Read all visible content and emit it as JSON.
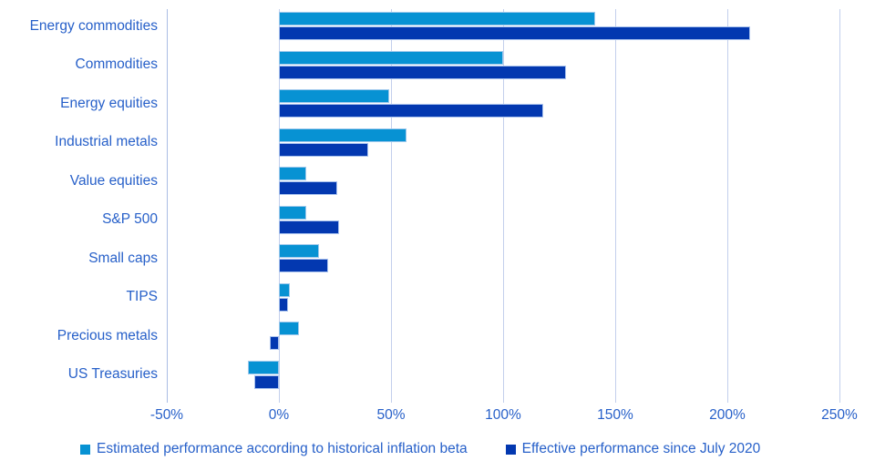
{
  "chart_data": {
    "type": "bar",
    "orientation": "horizontal",
    "title": "",
    "xlabel": "",
    "ylabel": "",
    "categories": [
      "Energy commodities",
      "Commodities",
      "Energy equities",
      "Industrial metals",
      "Value equities",
      "S&P 500",
      "Small caps",
      "TIPS",
      "Precious metals",
      "US Treasuries"
    ],
    "series": [
      {
        "name": "Estimated performance according to historical inflation beta",
        "color": "#0792d3",
        "values": [
          141,
          100,
          49,
          57,
          12,
          12,
          18,
          5,
          9,
          -14
        ]
      },
      {
        "name": "Effective performance since July 2020",
        "color": "#0338b0",
        "values": [
          210,
          128,
          118,
          40,
          26,
          27,
          22,
          4,
          -4,
          -11
        ]
      }
    ],
    "x_ticks": [
      "-50%",
      "0%",
      "50%",
      "100%",
      "150%",
      "200%",
      "250%"
    ],
    "x_min": -50,
    "x_max": 250,
    "value_unit": "%",
    "grid": "vertical-only",
    "legend_position": "bottom"
  },
  "colors": {
    "series_light": "#0792d3",
    "series_dark": "#0338b0",
    "label_text": "#2760c9",
    "gridline": "#c3cfec",
    "background": "#ffffff"
  }
}
